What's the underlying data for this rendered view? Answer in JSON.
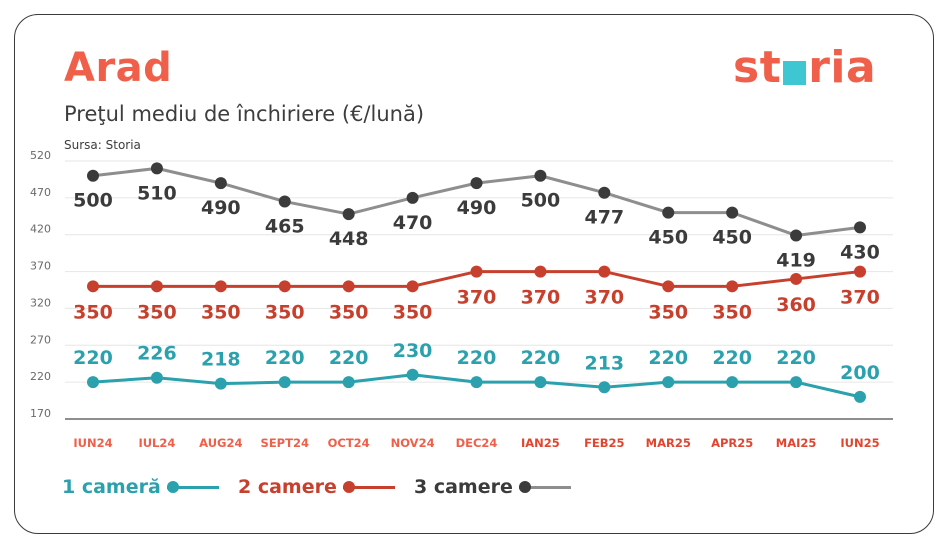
{
  "header": {
    "city": "Arad",
    "subtitle": "Preţul mediu de închiriere (€/lună)",
    "source": "Sursa: Storia",
    "logo_left": "st",
    "logo_right": "ria"
  },
  "colors": {
    "accent": "#ef5f4a",
    "one_room": "#2aa1ad",
    "two_rooms": "#c7402d",
    "three_rooms": "#3b3b3b",
    "three_rooms_line": "#8e8e8e",
    "tick_year24": "#ef5f4a",
    "tick_year25": "#e2452f",
    "grid": "#e6e6e6",
    "axis": "#4a4a4a"
  },
  "chart_data": {
    "type": "line",
    "title": "Preţul mediu de închiriere (€/lună)",
    "categories": [
      "IUN24",
      "IUL24",
      "AUG24",
      "SEPT24",
      "OCT24",
      "NOV24",
      "DEC24",
      "IAN25",
      "FEB25",
      "MAR25",
      "APR25",
      "MAI25",
      "IUN25"
    ],
    "ylim": [
      170,
      520
    ],
    "yticks": [
      520,
      470,
      420,
      370,
      320,
      270,
      220,
      170
    ],
    "grid": true,
    "series": [
      {
        "name": "3 camere",
        "key": "three_rooms",
        "values": [
          500,
          510,
          490,
          465,
          448,
          470,
          490,
          500,
          477,
          450,
          450,
          419,
          430
        ]
      },
      {
        "name": "2 camere",
        "key": "two_rooms",
        "values": [
          350,
          350,
          350,
          350,
          350,
          350,
          370,
          370,
          370,
          350,
          350,
          360,
          370
        ]
      },
      {
        "name": "1 cameră",
        "key": "one_room",
        "values": [
          220,
          226,
          218,
          220,
          220,
          230,
          220,
          220,
          213,
          220,
          220,
          220,
          200
        ]
      }
    ]
  },
  "legend": {
    "one_room": "1 cameră",
    "two_rooms": "2 camere",
    "three_rooms": "3 camere"
  }
}
